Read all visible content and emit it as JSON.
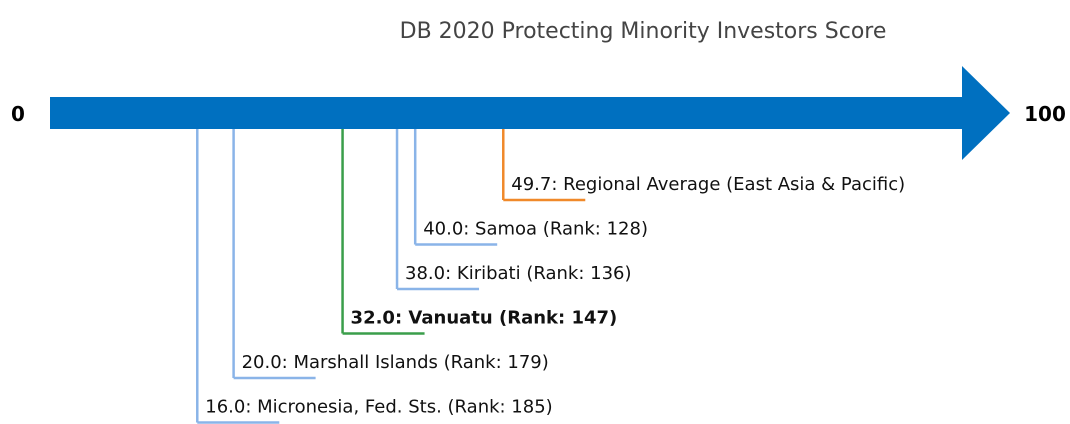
{
  "chart_data": {
    "type": "number-line",
    "title": "DB 2020 Protecting Minority Investors Score",
    "xlim": [
      0,
      100
    ],
    "xticks": [
      0,
      100
    ],
    "axis_color": "#0070c0",
    "values": [
      49.7,
      40.0,
      38.0,
      32.0,
      20.0,
      16.0
    ],
    "value_labels": [
      "49.7: Regional Average (East Asia & Pacific)",
      "40.0: Samoa (Rank: 128)",
      "38.0: Kiribati (Rank: 136)",
      "32.0: Vanuatu (Rank: 147)",
      "20.0: Marshall Islands (Rank: 179)",
      "16.0: Micronesia, Fed. Sts. (Rank: 185)"
    ],
    "colors": [
      "#f0892a",
      "#8ab4e8",
      "#8ab4e8",
      "#3a9e4a",
      "#8ab4e8",
      "#8ab4e8"
    ],
    "bold": [
      false,
      false,
      false,
      true,
      false,
      false
    ]
  }
}
